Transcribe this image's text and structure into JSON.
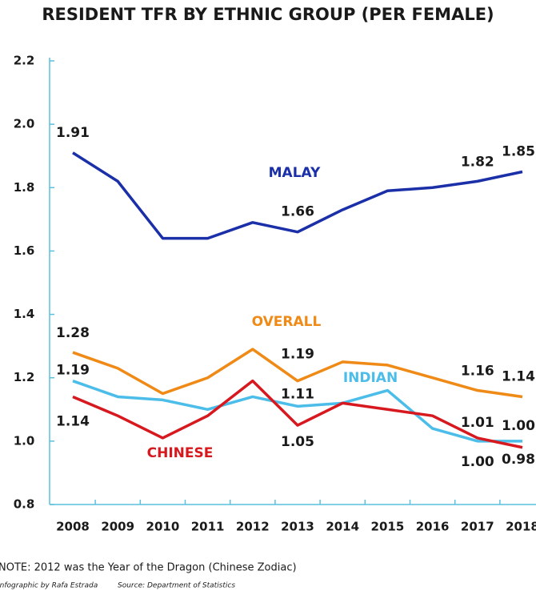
{
  "chart_data": {
    "type": "line",
    "title": "RESIDENT TFR BY ETHNIC GROUP (PER FEMALE)",
    "categories": [
      "2008",
      "2009",
      "2010",
      "2011",
      "2012",
      "2013",
      "2014",
      "2015",
      "2016",
      "2017",
      "2018"
    ],
    "ylim": [
      0.8,
      2.2
    ],
    "yticks": [
      0.8,
      {
        "value": 1,
        "label": "1.0"
      },
      1.2,
      1.4,
      1.6,
      1.8,
      {
        "value": 2,
        "label": "2.0"
      },
      2.2
    ],
    "grid": false,
    "series": [
      {
        "name": "MALAY",
        "color": "#1a2fa8",
        "values": [
          1.91,
          1.82,
          1.64,
          1.64,
          1.69,
          1.66,
          1.73,
          1.79,
          1.8,
          1.82,
          1.85
        ],
        "value_labels": [
          "1.91",
          null,
          null,
          null,
          null,
          "1.66",
          null,
          null,
          null,
          "1.82",
          "1.85"
        ]
      },
      {
        "name": "OVERALL",
        "color": "#ef8a17",
        "values": [
          1.28,
          1.23,
          1.15,
          1.2,
          1.29,
          1.19,
          1.25,
          1.24,
          1.2,
          1.16,
          1.14
        ],
        "value_labels": [
          "1.28",
          null,
          null,
          null,
          null,
          "1.19",
          null,
          null,
          null,
          "1.16",
          "1.14"
        ]
      },
      {
        "name": "INDIAN",
        "color": "#4bbde8",
        "values": [
          1.19,
          1.14,
          1.13,
          1.1,
          1.14,
          1.11,
          1.12,
          1.16,
          1.04,
          1.0,
          1.0
        ],
        "value_labels": [
          "1.19",
          null,
          null,
          null,
          null,
          "1.11",
          null,
          null,
          null,
          "1.00",
          "1.00"
        ]
      },
      {
        "name": "CHINESE",
        "color": "#d7191f",
        "values": [
          1.14,
          1.08,
          1.01,
          1.08,
          1.19,
          1.05,
          1.12,
          1.1,
          1.08,
          1.01,
          0.98
        ],
        "value_labels": [
          "1.14",
          null,
          null,
          null,
          null,
          "1.05",
          null,
          null,
          null,
          "1.01",
          "0.98"
        ]
      }
    ],
    "annotations": [
      "NOTE: 2012 was the Year of the Dragon (Chinese Zodiac)",
      "Infographic by Rafa Estrada",
      "Source: Department of Statistics"
    ]
  }
}
